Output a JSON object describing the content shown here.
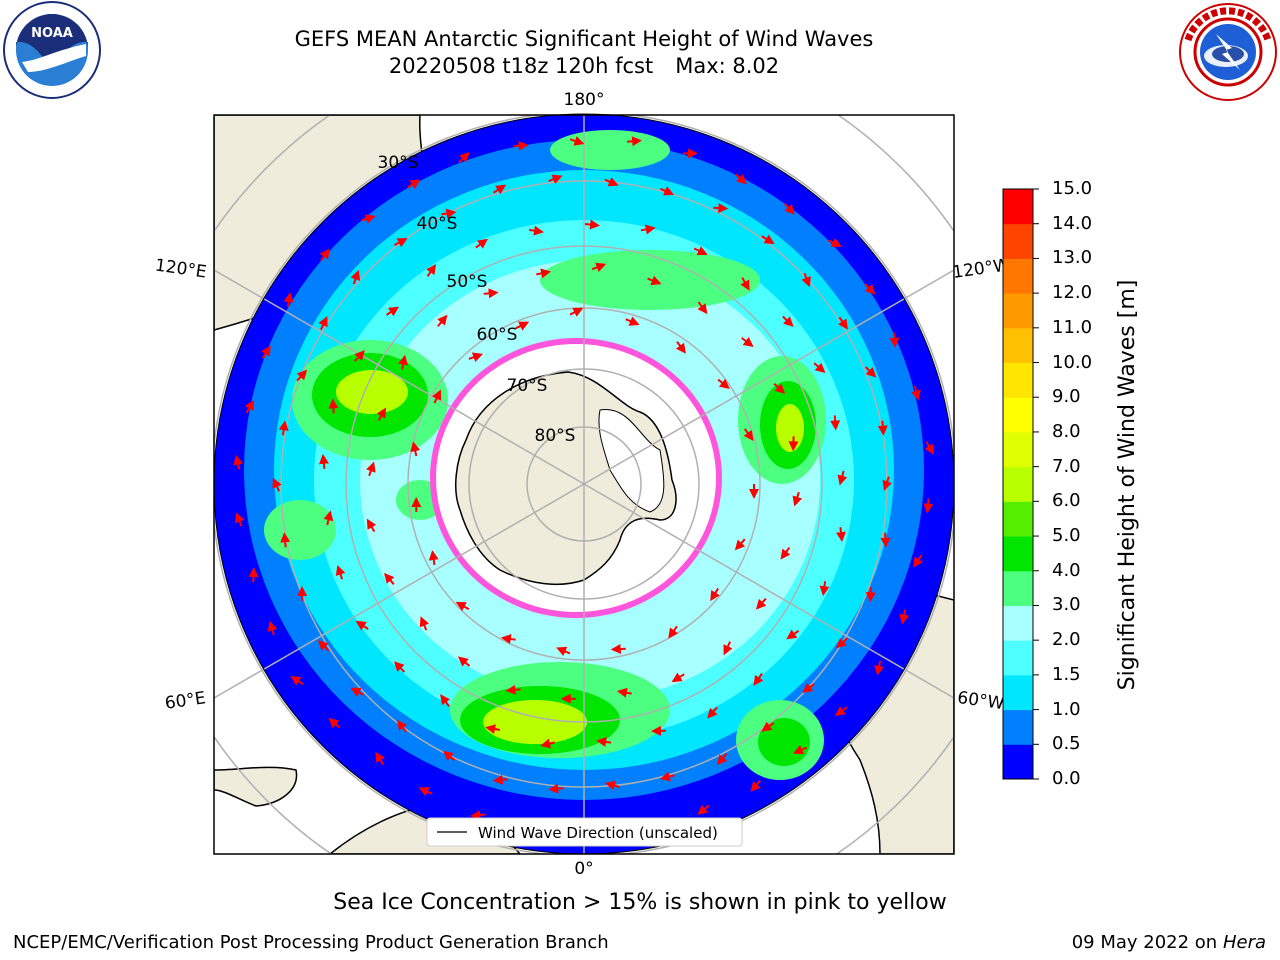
{
  "header": {
    "title_line1": "GEFS MEAN Antarctic Significant Height of Wind Waves",
    "title_line2_run": "20220508 t18z 120h fcst",
    "title_line2_max": "Max: 8.02"
  },
  "logos": {
    "left": {
      "name": "NOAA",
      "ring_text": "NATIONAL OCEANIC AND ATMOSPHERIC ADMINISTRATION · U.S. DEPARTMENT OF COMMERCE"
    },
    "right": {
      "name": "NATIONAL WEATHER SERVICE"
    }
  },
  "map": {
    "projection": "south-polar-stereographic",
    "longitude_labels": {
      "top": "180°",
      "bottom": "0°",
      "upper_left": "120°E",
      "upper_right": "120°W",
      "lower_left": "60°E",
      "lower_right": "60°W"
    },
    "latitude_labels": [
      "30°S",
      "40°S",
      "50°S",
      "60°S",
      "70°S",
      "80°S"
    ],
    "legend": "Wind Wave Direction (unscaled)",
    "colors": {
      "land": "#efecdc",
      "ice_edge": "#ff55dd",
      "arrow": "#ff0000",
      "grid": "#b0b0b0"
    }
  },
  "colorbar": {
    "label": "Significant Height of Wind Waves [m]",
    "ticks": [
      "0.0",
      "0.5",
      "1.0",
      "1.5",
      "2.0",
      "3.0",
      "4.0",
      "5.0",
      "6.0",
      "7.0",
      "8.0",
      "9.0",
      "10.0",
      "11.0",
      "12.0",
      "13.0",
      "14.0",
      "15.0"
    ],
    "colors": [
      "#0000ff",
      "#0080ff",
      "#00e6ff",
      "#4dffff",
      "#a8ffff",
      "#4cff80",
      "#00e600",
      "#55ee00",
      "#b8ff00",
      "#e0ff00",
      "#ffff00",
      "#ffe600",
      "#ffc000",
      "#ff9900",
      "#ff7700",
      "#ff4400",
      "#ff0000"
    ]
  },
  "footer": {
    "ice_note": "Sea Ice Concentration > 15% is shown in pink to yellow",
    "credit": "NCEP/EMC/Verification Post Processing Product Generation Branch",
    "date": "09 May 2022 on",
    "machine": "Hera"
  }
}
